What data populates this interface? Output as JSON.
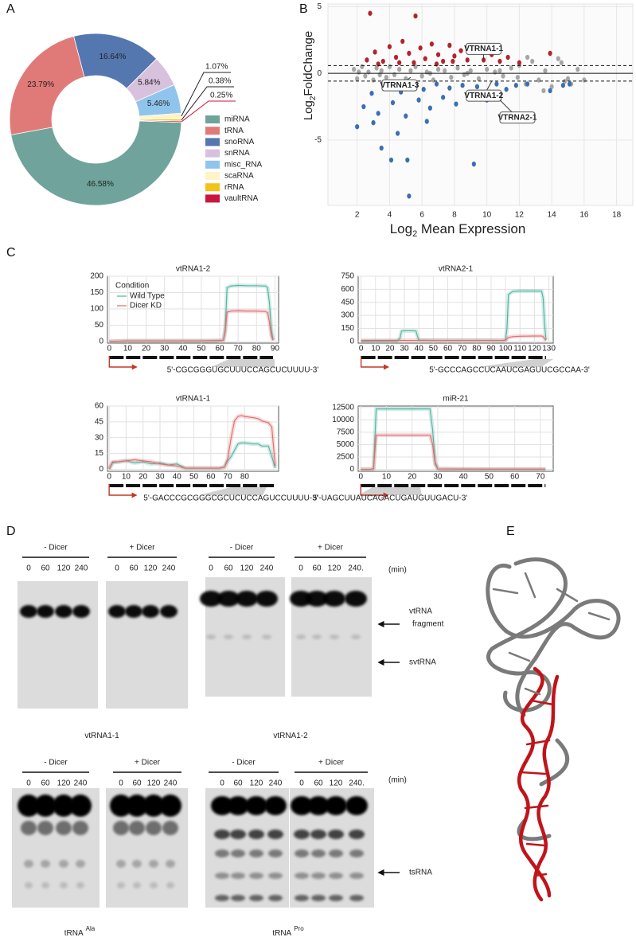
{
  "panel_labels": [
    "A",
    "B",
    "C",
    "D",
    "E"
  ],
  "chart_data": [
    {
      "type": "pie",
      "categories": [
        "miRNA",
        "tRNA",
        "snoRNA",
        "snRNA",
        "misc_RNA",
        "scaRNA",
        "rRNA",
        "vaultRNA"
      ],
      "values": [
        46.58,
        23.79,
        16.64,
        5.84,
        5.46,
        1.07,
        0.38,
        0.25
      ],
      "value_labels": [
        "46.58%",
        "23.79%",
        "16.64%",
        "5.84%",
        "5.46%",
        "1.07%",
        "0.38%",
        "0.25%"
      ],
      "colors": [
        "#6fa39b",
        "#e07a78",
        "#5577b0",
        "#d8c1dc",
        "#8fc5ec",
        "#fff4c8",
        "#f2c318",
        "#c8163e"
      ],
      "legend": "right"
    },
    {
      "type": "scatter",
      "x_label": [
        "Log",
        "2",
        " Mean Expression"
      ],
      "y_label": [
        "Log",
        "2",
        "FoldChange"
      ],
      "xlim": [
        0.2,
        19
      ],
      "ylim": [
        -9.9,
        5.2
      ],
      "xticks": [
        2,
        4,
        6,
        8,
        10,
        12,
        14,
        16,
        18
      ],
      "yticks": [
        -5,
        0,
        5
      ],
      "grid": true,
      "threshold_lines": [
        0.58,
        -0.58
      ],
      "series": [
        {
          "color": "#a6a6a6",
          "x": [
            1.8,
            2.0,
            2.3,
            2.5,
            2.7,
            3.0,
            3.2,
            3.5,
            3.8,
            4.0,
            4.3,
            4.6,
            5.0,
            5.3,
            5.6,
            6.0,
            6.3,
            6.7,
            7.0,
            7.4,
            7.8,
            8.2,
            8.6,
            9.0,
            9.5,
            10.0,
            10.5,
            11.0,
            11.5,
            12.0,
            12.4,
            12.8,
            13.2,
            13.6,
            14.0,
            14.4,
            14.8,
            15.2,
            15.6,
            16.0,
            12.5,
            13.5,
            14.6,
            15.0,
            2.1,
            3.4,
            6.5,
            8.8,
            10.8,
            11.9
          ],
          "values": [
            0.3,
            -0.4,
            0.5,
            -0.2,
            0.1,
            -0.5,
            0.4,
            0.2,
            -0.3,
            0.5,
            -0.1,
            0.3,
            -0.4,
            0.2,
            0.5,
            -0.2,
            0.1,
            -0.5,
            0.3,
            0.2,
            -0.3,
            0.4,
            -0.1,
            0.2,
            -0.4,
            0.3,
            0.1,
            -0.2,
            0.4,
            0.6,
            -0.8,
            0.9,
            -0.5,
            0.2,
            -1.0,
            1.1,
            -0.6,
            -0.8,
            0.3,
            -0.5,
            1.2,
            -1.3,
            0.8,
            -0.4,
            0.1,
            -0.1,
            0.0,
            0.0,
            0.2,
            -0.3
          ]
        },
        {
          "color": "#b3242a",
          "x": [
            2.8,
            5.6,
            2.6,
            3.1,
            3.6,
            4.0,
            4.4,
            4.8,
            5.2,
            5.5,
            5.9,
            6.2,
            6.6,
            7.0,
            7.3,
            7.7,
            8.0,
            8.4,
            8.8,
            9.2,
            9.8,
            10.3,
            10.8,
            11.3,
            12.0,
            13.9,
            3.3,
            4.6,
            6.9,
            7.9
          ],
          "values": [
            4.5,
            4.3,
            1.0,
            1.6,
            0.9,
            2.0,
            1.2,
            2.4,
            1.5,
            0.8,
            1.9,
            1.1,
            2.2,
            1.4,
            0.9,
            2.1,
            1.3,
            1.7,
            1.0,
            2.0,
            1.0,
            1.4,
            0.9,
            1.2,
            0.8,
            1.5,
            0.7,
            0.8,
            0.7,
            0.9
          ]
        },
        {
          "color": "#3a6fb5",
          "x": [
            2.0,
            3.5,
            4.1,
            5.1,
            5.2,
            9.2,
            4.5,
            2.4,
            2.9,
            3.3,
            3.8,
            4.2,
            4.7,
            5.0,
            5.4,
            5.8,
            6.1,
            6.5,
            6.9,
            7.3,
            7.7,
            8.1,
            8.5,
            8.9,
            9.4,
            10.0,
            10.6,
            11.2,
            11.8,
            12.5,
            13.9,
            14.7,
            15.1,
            3.0,
            6.3
          ],
          "values": [
            -4.0,
            -5.6,
            -6.5,
            -6.5,
            -9.2,
            -6.8,
            -4.5,
            -2.5,
            -1.5,
            -3.0,
            -1.0,
            -2.2,
            -1.4,
            -3.2,
            -0.9,
            -2.0,
            -1.2,
            -2.6,
            -0.8,
            -1.8,
            -1.1,
            -2.3,
            -0.9,
            -1.5,
            -1.0,
            -2.0,
            -0.8,
            -1.2,
            -0.9,
            -0.8,
            -1.3,
            -0.9,
            -0.8,
            -3.7,
            -3.6
          ]
        }
      ],
      "annotations": [
        {
          "text": "VTRNA1-1",
          "x": 9.8,
          "y": 1.0
        },
        {
          "text": "VTRNA1-3",
          "x": 5.3,
          "y": -0.3
        },
        {
          "text": "VTRNA1-2",
          "x": 10.3,
          "y": -0.6
        },
        {
          "text": "VTRNA2-1",
          "x": 10.8,
          "y": -2.0
        }
      ]
    },
    {
      "type": "line",
      "title": "vtRNA1-2",
      "x": [
        0,
        5,
        10,
        20,
        30,
        40,
        50,
        60,
        62,
        63,
        64,
        66,
        70,
        75,
        80,
        85,
        86,
        87,
        88,
        89
      ],
      "series": [
        {
          "name": "Wild Type",
          "color": "#4fb3a1",
          "values": [
            0,
            1,
            2,
            2,
            2,
            2,
            2,
            3,
            4,
            40,
            165,
            170,
            172,
            171,
            171,
            170,
            165,
            120,
            40,
            5
          ]
        },
        {
          "name": "Dicer KD",
          "color": "#e06c6c",
          "values": [
            0,
            1,
            2,
            2,
            2,
            2,
            2,
            3,
            4,
            30,
            90,
            93,
            94,
            93,
            93,
            92,
            88,
            60,
            20,
            3
          ]
        }
      ],
      "xlim": [
        -1,
        92
      ],
      "ylim": [
        -5,
        200
      ],
      "xticks": [
        0,
        10,
        20,
        30,
        40,
        50,
        60,
        70,
        80,
        90
      ],
      "yticks": [
        0,
        50,
        100,
        150,
        200
      ],
      "grid": true,
      "legend": "top-left",
      "legend_title": "Condition",
      "sequence": "5'-CGCGGGUGCUUUCCAGCUCUUUU-3'"
    },
    {
      "type": "line",
      "title": "vtRNA2-1",
      "x": [
        0,
        10,
        20,
        25,
        27,
        28,
        30,
        35,
        38,
        39,
        40,
        50,
        60,
        70,
        80,
        90,
        98,
        100,
        101,
        102,
        105,
        110,
        120,
        125,
        126,
        127,
        128
      ],
      "series": [
        {
          "color": "#4fb3a1",
          "values": [
            2,
            3,
            4,
            5,
            40,
            120,
            122,
            122,
            120,
            60,
            15,
            12,
            12,
            12,
            12,
            12,
            12,
            14,
            150,
            540,
            575,
            580,
            580,
            578,
            500,
            200,
            20
          ]
        },
        {
          "color": "#e06c6c",
          "values": [
            12,
            12,
            12,
            12,
            12,
            12,
            12,
            12,
            12,
            12,
            12,
            12,
            12,
            12,
            12,
            12,
            13,
            15,
            30,
            45,
            55,
            60,
            62,
            62,
            55,
            30,
            10
          ]
        }
      ],
      "xlim": [
        -2,
        133
      ],
      "ylim": [
        -20,
        750
      ],
      "xticks": [
        0,
        10,
        20,
        30,
        40,
        50,
        60,
        70,
        80,
        90,
        100,
        110,
        120,
        130
      ],
      "yticks": [
        0,
        150,
        300,
        450,
        600,
        750
      ],
      "grid": true,
      "sequence": "5'-GCCCAGCCUCAAUCGAGUUCGCCAA-3'"
    },
    {
      "type": "line",
      "title": "vtRNA1-1",
      "x": [
        0,
        2,
        5,
        10,
        15,
        20,
        25,
        30,
        35,
        40,
        45,
        50,
        55,
        60,
        65,
        68,
        70,
        72,
        74,
        76,
        78,
        80,
        85,
        88,
        90,
        94,
        96,
        98
      ],
      "series": [
        {
          "color": "#4fb3a1",
          "values": [
            0,
            6,
            7,
            8,
            6,
            7,
            5,
            6,
            4,
            5,
            1,
            1,
            1,
            1,
            1,
            2,
            8,
            12,
            18,
            24,
            25,
            25,
            24,
            24,
            22,
            22,
            12,
            1
          ]
        },
        {
          "color": "#e06c6c",
          "values": [
            0,
            7,
            7,
            8,
            9,
            8,
            7,
            5,
            4,
            3,
            1,
            1,
            1,
            1,
            1,
            2,
            10,
            30,
            46,
            50,
            51,
            50,
            49,
            48,
            46,
            44,
            40,
            3
          ]
        }
      ],
      "xlim": [
        -1,
        100
      ],
      "ylim": [
        -2,
        60
      ],
      "xticks": [
        0,
        10,
        20,
        30,
        40,
        50,
        60,
        70,
        80
      ],
      "yticks": [
        0,
        15,
        30,
        45,
        60
      ],
      "grid": true,
      "sequence": "5'-GACCCGCGGGCGCUCUCCAGUCCUUUU-3'"
    },
    {
      "type": "line",
      "title": "miR-21",
      "x": [
        0,
        4,
        5,
        6,
        10,
        20,
        27,
        28,
        29,
        30,
        40,
        50,
        60,
        70,
        72
      ],
      "series": [
        {
          "color": "#4fb3a1",
          "values": [
            0,
            0,
            200,
            12200,
            12200,
            12200,
            12200,
            8000,
            1500,
            100,
            50,
            30,
            30,
            30,
            30
          ]
        },
        {
          "color": "#e06c6c",
          "values": [
            0,
            0,
            150,
            6900,
            6900,
            6900,
            6900,
            5000,
            1000,
            100,
            50,
            30,
            30,
            30,
            30
          ]
        }
      ],
      "xlim": [
        -1,
        75
      ],
      "ylim": [
        -400,
        12800
      ],
      "xticks": [
        0,
        10,
        20,
        30,
        40,
        50,
        60,
        70
      ],
      "yticks": [
        0,
        2500,
        5000,
        7500,
        10000,
        12500
      ],
      "grid": true,
      "sequence": "5'-UAGCUUAUCAGACUGAUGUUGACU-3'"
    }
  ],
  "gels": [
    {
      "title": "vtRNA1-1",
      "groups": [
        {
          "label": "- Dicer",
          "lanes": [
            "0",
            "60",
            "120",
            "240"
          ]
        },
        {
          "label": "+ Dicer",
          "lanes": [
            "0",
            "60",
            "120",
            "240"
          ]
        }
      ]
    },
    {
      "title": "vtRNA1-2",
      "unit": "(min)",
      "groups": [
        {
          "label": "- Dicer",
          "lanes": [
            "0",
            "60",
            "120",
            "240"
          ]
        },
        {
          "label": "+ Dicer",
          "lanes": [
            "0",
            "60",
            "120",
            "240."
          ]
        }
      ],
      "markers": [
        {
          "lines": [
            "vtRNA",
            "fragment"
          ]
        },
        {
          "lines": [
            "svtRNA"
          ]
        }
      ]
    },
    {
      "title": "tRNA",
      "title_sup": "Ala",
      "groups": [
        {
          "label": "- Dicer",
          "lanes": [
            "0",
            "60",
            "120",
            "240"
          ]
        },
        {
          "label": "+ Dicer",
          "lanes": [
            "0",
            "60",
            "120",
            "240"
          ]
        }
      ]
    },
    {
      "title": "tRNA",
      "title_sup": "Pro",
      "unit": "(min)",
      "groups": [
        {
          "label": "- Dicer",
          "lanes": [
            "0",
            "60",
            "120",
            "240"
          ]
        },
        {
          "label": "+ Dicer",
          "lanes": [
            "0",
            "60",
            "120",
            "240."
          ]
        }
      ],
      "markers": [
        {
          "lines": [
            "tsRNA"
          ]
        }
      ]
    }
  ]
}
